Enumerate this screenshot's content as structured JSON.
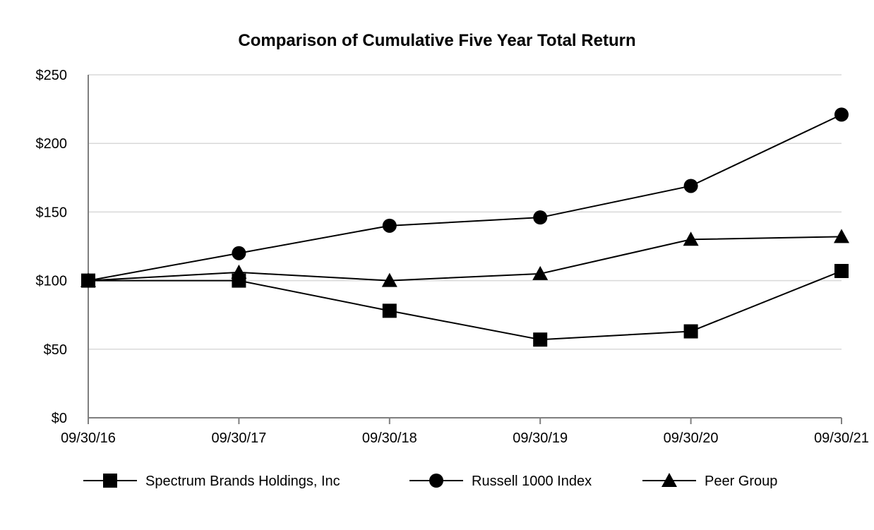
{
  "chart_data": {
    "type": "line",
    "title": "Comparison of Cumulative Five Year Total Return",
    "categories": [
      "09/30/16",
      "09/30/17",
      "09/30/18",
      "09/30/19",
      "09/30/20",
      "09/30/21"
    ],
    "ylim": [
      0,
      250
    ],
    "y_ticks": [
      0,
      50,
      100,
      150,
      200,
      250
    ],
    "y_tick_labels": [
      "$0",
      "$50",
      "$100",
      "$150",
      "$200",
      "$250"
    ],
    "grid": "horizontal",
    "legend_position": "bottom",
    "series": [
      {
        "name": "Spectrum Brands Holdings, Inc",
        "marker": "square",
        "values": [
          100,
          100,
          78,
          57,
          63,
          107
        ]
      },
      {
        "name": "Russell 1000 Index",
        "marker": "circle",
        "values": [
          100,
          120,
          140,
          146,
          169,
          221
        ]
      },
      {
        "name": "Peer Group",
        "marker": "triangle",
        "values": [
          100,
          106,
          100,
          105,
          130,
          132
        ]
      }
    ],
    "colors": {
      "line": "#000000",
      "grid": "#d9d9d9",
      "axis": "#7f7f7f"
    }
  }
}
